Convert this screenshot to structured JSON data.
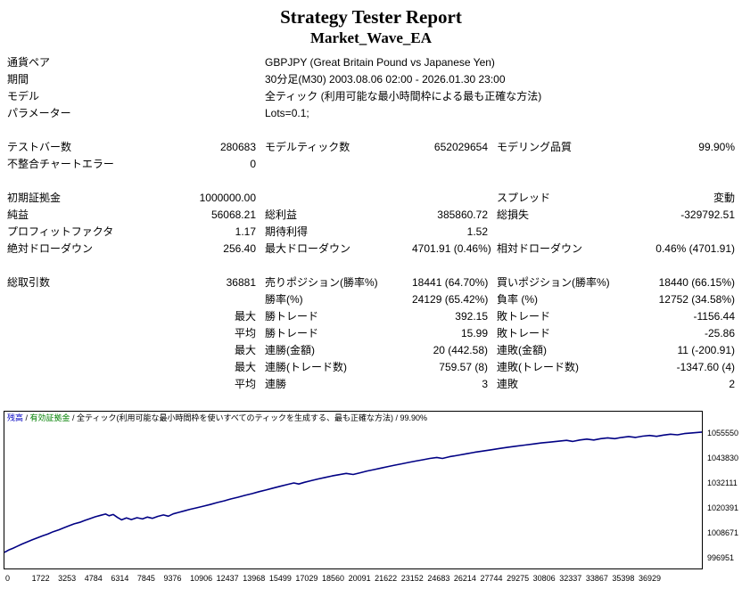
{
  "title": "Strategy Tester Report",
  "subtitle": "Market_Wave_EA",
  "table": {
    "rows": [
      {
        "type": "info",
        "label": "通貨ペア",
        "value": "GBPJPY (Great Britain Pound vs Japanese Yen)"
      },
      {
        "type": "info",
        "label": "期間",
        "value": "30分足(M30) 2003.08.06 02:00 - 2026.01.30 23:00"
      },
      {
        "type": "info",
        "label": "モデル",
        "value": "全ティック (利用可能な最小時間枠による最も正確な方法)"
      },
      {
        "type": "info",
        "label": "パラメーター",
        "value": "Lots=0.1;"
      },
      {
        "type": "gap"
      },
      {
        "type": "stats",
        "cells": [
          "テストバー数",
          "280683",
          "モデルティック数",
          "652029654",
          "モデリング品質",
          "99.90%"
        ]
      },
      {
        "type": "stats",
        "cells": [
          "不整合チャートエラー",
          "0",
          "",
          "",
          "",
          ""
        ]
      },
      {
        "type": "gap"
      },
      {
        "type": "stats",
        "cells": [
          "初期証拠金",
          "1000000.00",
          "",
          "",
          "スプレッド",
          "変動"
        ]
      },
      {
        "type": "stats",
        "cells": [
          "純益",
          "56068.21",
          "総利益",
          "385860.72",
          "総損失",
          "-329792.51"
        ]
      },
      {
        "type": "stats",
        "cells": [
          "プロフィットファクタ",
          "1.17",
          "期待利得",
          "1.52",
          "",
          ""
        ]
      },
      {
        "type": "stats",
        "cells": [
          "絶対ドローダウン",
          "256.40",
          "最大ドローダウン",
          "4701.91 (0.46%)",
          "相対ドローダウン",
          "0.46% (4701.91)"
        ]
      },
      {
        "type": "gap"
      },
      {
        "type": "stats",
        "cells": [
          "総取引数",
          "36881",
          "売りポジション(勝率%)",
          "18441 (64.70%)",
          "買いポジション(勝率%)",
          "18440 (66.15%)"
        ]
      },
      {
        "type": "stats",
        "cells": [
          "",
          "",
          "勝率(%)",
          "24129 (65.42%)",
          "負率 (%)",
          "12752 (34.58%)"
        ]
      },
      {
        "type": "stats",
        "cells": [
          "",
          "最大",
          "勝トレード",
          "392.15",
          "敗トレード",
          "-1156.44"
        ]
      },
      {
        "type": "stats",
        "cells": [
          "",
          "平均",
          "勝トレード",
          "15.99",
          "敗トレード",
          "-25.86"
        ]
      },
      {
        "type": "stats",
        "cells": [
          "",
          "最大",
          "連勝(金額)",
          "20 (442.58)",
          "連敗(金額)",
          "11 (-200.91)"
        ]
      },
      {
        "type": "stats",
        "cells": [
          "",
          "最大",
          "連勝(トレード数)",
          "759.57 (8)",
          "連敗(トレード数)",
          "-1347.60 (4)"
        ]
      },
      {
        "type": "stats",
        "cells": [
          "",
          "平均",
          "連勝",
          "3",
          "連敗",
          "2"
        ]
      }
    ]
  },
  "chart_legend": [
    {
      "text": "残高",
      "color": "#0000c0"
    },
    {
      "text": " / ",
      "color": "#000000"
    },
    {
      "text": "有効証拠金",
      "color": "#008000"
    },
    {
      "text": " / 全ティック(利用可能な最小時間枠を使いすべてのティックを生成する、最も正確な方法) / 99.90%",
      "color": "#000000"
    }
  ],
  "chart_data": {
    "type": "line",
    "title": "",
    "xlabel": "",
    "ylabel": "",
    "legend_position": "top-left",
    "grid": false,
    "line_color": "#000084",
    "yticks": [
      996951,
      1008671,
      1020391,
      1032111,
      1043830,
      1055550
    ],
    "xticks": [
      0,
      1722,
      3253,
      4784,
      6314,
      7845,
      9376,
      10906,
      12437,
      13968,
      15499,
      17029,
      18560,
      20091,
      21622,
      23152,
      24683,
      26214,
      27744,
      29275,
      30806,
      32337,
      33867,
      35398,
      36929
    ],
    "series": [
      {
        "name": "残高",
        "color": "#000084",
        "points": [
          [
            0.0,
            999500
          ],
          [
            0.006,
            1000600
          ],
          [
            0.012,
            1001400
          ],
          [
            0.018,
            1002300
          ],
          [
            0.025,
            1003400
          ],
          [
            0.032,
            1004300
          ],
          [
            0.04,
            1005400
          ],
          [
            0.048,
            1006400
          ],
          [
            0.055,
            1007300
          ],
          [
            0.062,
            1008100
          ],
          [
            0.07,
            1009200
          ],
          [
            0.078,
            1010100
          ],
          [
            0.085,
            1011000
          ],
          [
            0.092,
            1011900
          ],
          [
            0.1,
            1012900
          ],
          [
            0.108,
            1013600
          ],
          [
            0.115,
            1014500
          ],
          [
            0.122,
            1015300
          ],
          [
            0.13,
            1016200
          ],
          [
            0.138,
            1016900
          ],
          [
            0.145,
            1017500
          ],
          [
            0.15,
            1016700
          ],
          [
            0.156,
            1017300
          ],
          [
            0.162,
            1015900
          ],
          [
            0.168,
            1014800
          ],
          [
            0.175,
            1015700
          ],
          [
            0.182,
            1014900
          ],
          [
            0.19,
            1015800
          ],
          [
            0.198,
            1015200
          ],
          [
            0.205,
            1016100
          ],
          [
            0.212,
            1015500
          ],
          [
            0.22,
            1016400
          ],
          [
            0.228,
            1017100
          ],
          [
            0.235,
            1016500
          ],
          [
            0.242,
            1017600
          ],
          [
            0.25,
            1018300
          ],
          [
            0.258,
            1019000
          ],
          [
            0.266,
            1019700
          ],
          [
            0.275,
            1020400
          ],
          [
            0.285,
            1021200
          ],
          [
            0.295,
            1022000
          ],
          [
            0.305,
            1022900
          ],
          [
            0.315,
            1023700
          ],
          [
            0.325,
            1024600
          ],
          [
            0.335,
            1025400
          ],
          [
            0.345,
            1026300
          ],
          [
            0.355,
            1027100
          ],
          [
            0.365,
            1028000
          ],
          [
            0.375,
            1028800
          ],
          [
            0.385,
            1029700
          ],
          [
            0.395,
            1030500
          ],
          [
            0.405,
            1031300
          ],
          [
            0.415,
            1032100
          ],
          [
            0.422,
            1031600
          ],
          [
            0.43,
            1032400
          ],
          [
            0.44,
            1033200
          ],
          [
            0.45,
            1034000
          ],
          [
            0.46,
            1034700
          ],
          [
            0.47,
            1035400
          ],
          [
            0.48,
            1036000
          ],
          [
            0.49,
            1036600
          ],
          [
            0.5,
            1036100
          ],
          [
            0.51,
            1036900
          ],
          [
            0.52,
            1037700
          ],
          [
            0.53,
            1038400
          ],
          [
            0.54,
            1039100
          ],
          [
            0.55,
            1039800
          ],
          [
            0.56,
            1040500
          ],
          [
            0.57,
            1041100
          ],
          [
            0.58,
            1041800
          ],
          [
            0.59,
            1042400
          ],
          [
            0.6,
            1043000
          ],
          [
            0.61,
            1043600
          ],
          [
            0.62,
            1044100
          ],
          [
            0.628,
            1043600
          ],
          [
            0.638,
            1044400
          ],
          [
            0.65,
            1045100
          ],
          [
            0.662,
            1045800
          ],
          [
            0.674,
            1046500
          ],
          [
            0.686,
            1047100
          ],
          [
            0.698,
            1047700
          ],
          [
            0.71,
            1048300
          ],
          [
            0.722,
            1048900
          ],
          [
            0.734,
            1049400
          ],
          [
            0.746,
            1049900
          ],
          [
            0.758,
            1050400
          ],
          [
            0.77,
            1050900
          ],
          [
            0.782,
            1051300
          ],
          [
            0.794,
            1051700
          ],
          [
            0.806,
            1052100
          ],
          [
            0.815,
            1051600
          ],
          [
            0.825,
            1052300
          ],
          [
            0.835,
            1052700
          ],
          [
            0.845,
            1052300
          ],
          [
            0.855,
            1052900
          ],
          [
            0.865,
            1053300
          ],
          [
            0.875,
            1052900
          ],
          [
            0.885,
            1053500
          ],
          [
            0.895,
            1053900
          ],
          [
            0.905,
            1053500
          ],
          [
            0.915,
            1054100
          ],
          [
            0.925,
            1054400
          ],
          [
            0.935,
            1054000
          ],
          [
            0.945,
            1054600
          ],
          [
            0.955,
            1055000
          ],
          [
            0.965,
            1054700
          ],
          [
            0.975,
            1055300
          ],
          [
            0.985,
            1055600
          ],
          [
            1.0,
            1056000
          ]
        ]
      }
    ]
  }
}
